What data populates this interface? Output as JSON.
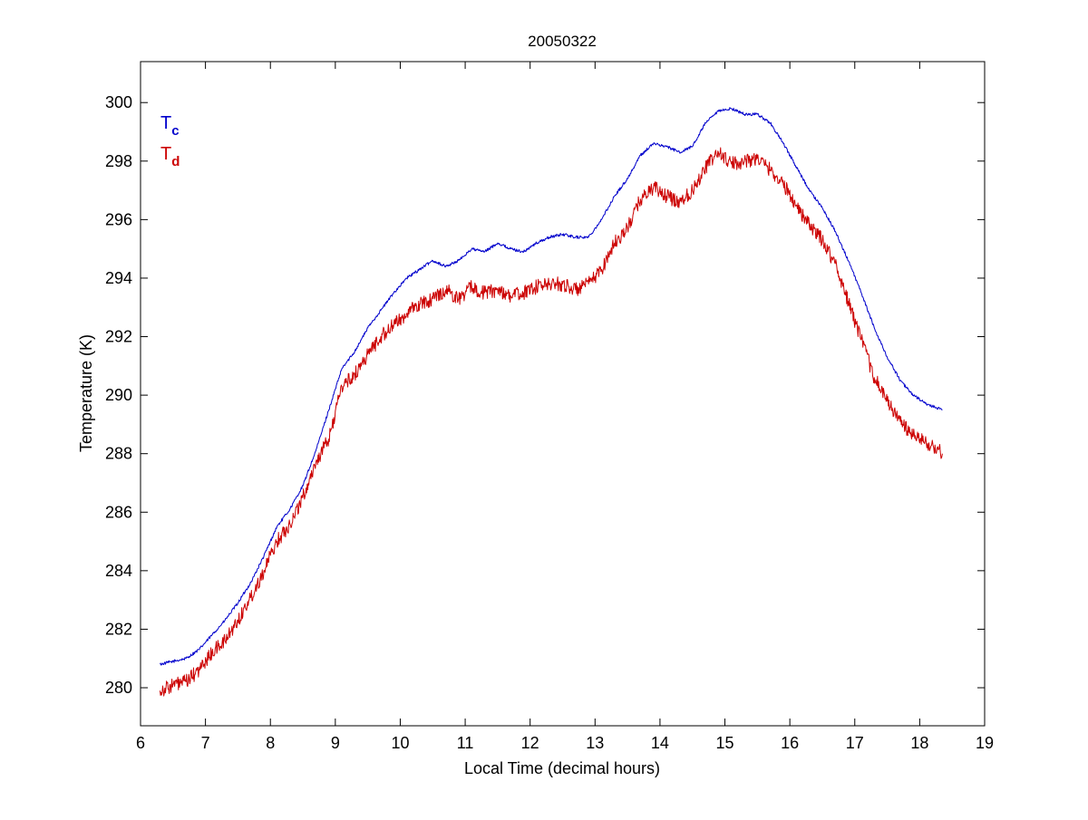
{
  "chart_data": {
    "type": "line",
    "title": "20050322",
    "xlabel": "Local Time (decimal hours)",
    "ylabel": "Temperature (K)",
    "xlim": [
      6,
      19
    ],
    "ylim": [
      278.7,
      301.4
    ],
    "xticks": [
      6,
      7,
      8,
      9,
      10,
      11,
      12,
      13,
      14,
      15,
      16,
      17,
      18,
      19
    ],
    "yticks": [
      280,
      282,
      284,
      286,
      288,
      290,
      292,
      294,
      296,
      298,
      300
    ],
    "grid": false,
    "legend": {
      "placement": "top-left"
    },
    "series": [
      {
        "name": "Tc",
        "legend_main": "T",
        "legend_sub": "c",
        "color": "#0000cc",
        "noise": 0.05,
        "x": [
          6.3,
          6.5,
          6.7,
          6.9,
          7.1,
          7.3,
          7.5,
          7.7,
          7.9,
          8.1,
          8.3,
          8.5,
          8.7,
          8.9,
          9.1,
          9.3,
          9.5,
          9.7,
          9.9,
          10.1,
          10.3,
          10.5,
          10.7,
          10.9,
          11.1,
          11.3,
          11.5,
          11.7,
          11.9,
          12.1,
          12.3,
          12.5,
          12.7,
          12.9,
          13.1,
          13.3,
          13.5,
          13.7,
          13.9,
          14.1,
          14.3,
          14.5,
          14.7,
          14.9,
          15.1,
          15.3,
          15.5,
          15.7,
          15.9,
          16.1,
          16.3,
          16.5,
          16.7,
          16.9,
          17.1,
          17.3,
          17.5,
          17.7,
          17.9,
          18.1,
          18.35
        ],
        "y": [
          280.8,
          280.9,
          281.0,
          281.3,
          281.8,
          282.3,
          282.9,
          283.6,
          284.5,
          285.5,
          286.1,
          286.9,
          288.1,
          289.5,
          290.9,
          291.5,
          292.3,
          292.9,
          293.5,
          294.0,
          294.3,
          294.6,
          294.4,
          294.6,
          295.0,
          294.9,
          295.2,
          295.0,
          294.9,
          295.2,
          295.4,
          295.5,
          295.4,
          295.4,
          296.0,
          296.8,
          297.4,
          298.2,
          298.6,
          298.5,
          298.3,
          298.5,
          299.3,
          299.7,
          299.8,
          299.6,
          299.6,
          299.3,
          298.6,
          297.8,
          297.0,
          296.4,
          295.6,
          294.6,
          293.5,
          292.3,
          291.3,
          290.5,
          290.0,
          289.7,
          289.5
        ]
      },
      {
        "name": "Td",
        "legend_main": "T",
        "legend_sub": "d",
        "color": "#cc0000",
        "noise": 0.25,
        "x": [
          6.3,
          6.5,
          6.7,
          6.9,
          7.1,
          7.3,
          7.5,
          7.7,
          7.9,
          8.1,
          8.3,
          8.5,
          8.7,
          8.9,
          9.1,
          9.3,
          9.5,
          9.7,
          9.9,
          10.1,
          10.3,
          10.5,
          10.7,
          10.9,
          11.1,
          11.3,
          11.5,
          11.7,
          11.9,
          12.1,
          12.3,
          12.5,
          12.7,
          12.9,
          13.1,
          13.3,
          13.5,
          13.7,
          13.9,
          14.1,
          14.3,
          14.5,
          14.7,
          14.9,
          15.1,
          15.3,
          15.5,
          15.7,
          15.9,
          16.1,
          16.3,
          16.5,
          16.7,
          16.9,
          17.1,
          17.3,
          17.5,
          17.7,
          17.9,
          18.1,
          18.35
        ],
        "y": [
          279.9,
          280.1,
          280.2,
          280.6,
          281.2,
          281.6,
          282.3,
          283.1,
          284.0,
          285.0,
          285.6,
          286.5,
          287.7,
          288.5,
          290.3,
          290.7,
          291.4,
          292.0,
          292.4,
          292.8,
          293.1,
          293.3,
          293.6,
          293.3,
          293.7,
          293.5,
          293.6,
          293.4,
          293.5,
          293.7,
          293.8,
          293.8,
          293.6,
          293.8,
          294.3,
          295.2,
          295.7,
          296.7,
          297.1,
          296.8,
          296.6,
          297.0,
          297.8,
          298.3,
          297.9,
          298.0,
          298.1,
          297.7,
          297.2,
          296.5,
          295.8,
          295.3,
          294.5,
          293.2,
          291.9,
          290.6,
          289.8,
          289.1,
          288.6,
          288.4,
          288.0
        ]
      }
    ]
  }
}
